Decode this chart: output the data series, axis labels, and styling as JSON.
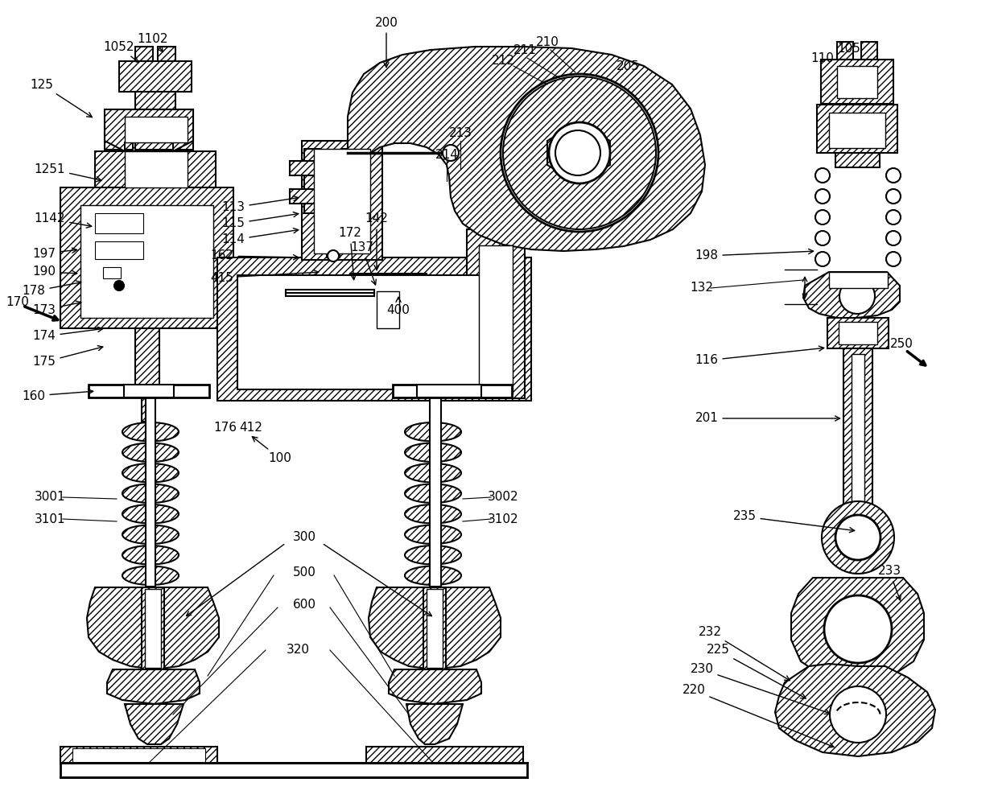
{
  "bg_color": "#ffffff",
  "hatch": "////",
  "lw": 1.5,
  "fs": 11,
  "components": "engine_brake_device"
}
